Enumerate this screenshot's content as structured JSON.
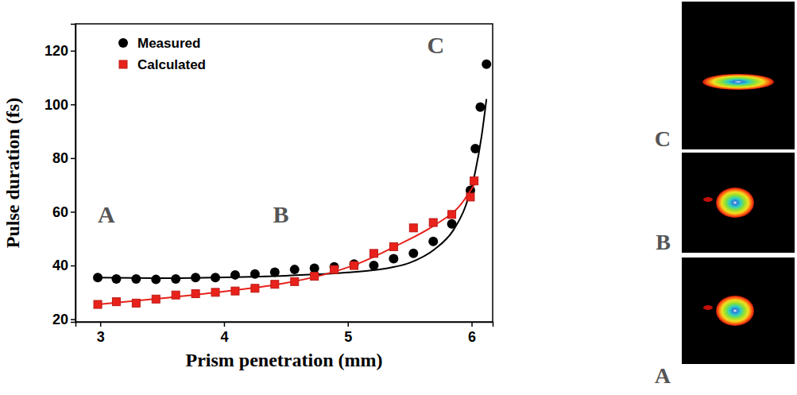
{
  "chart_data": {
    "type": "scatter",
    "x_label": "Prism penetration (mm)",
    "y_label": "Pulse duration (fs)",
    "xlim": [
      2.8,
      6.17
    ],
    "ylim": [
      19,
      130
    ],
    "xticks": [
      3,
      4,
      5,
      6
    ],
    "yticks": [
      20,
      40,
      60,
      80,
      100,
      120
    ],
    "legend": "top-left",
    "grid": false,
    "series": [
      {
        "name": "Measured",
        "color": "#000000",
        "marker": "circle",
        "x": [
          2.98,
          3.13,
          3.29,
          3.45,
          3.61,
          3.77,
          3.93,
          4.09,
          4.25,
          4.41,
          4.57,
          4.73,
          4.89,
          5.05,
          5.21,
          5.37,
          5.53,
          5.69,
          5.84,
          5.99,
          6.03,
          6.07,
          6.12
        ],
        "values": [
          35.5,
          35,
          35,
          34.8,
          35,
          35.5,
          35.5,
          36.5,
          36.8,
          37.5,
          38.5,
          39,
          39.5,
          40.5,
          40,
          42.5,
          44.5,
          49,
          55.5,
          68,
          83.5,
          99,
          115
        ],
        "fit": {
          "x": [
            2.98,
            3.5,
            4.0,
            4.5,
            5.0,
            5.3,
            5.5,
            5.7,
            5.85,
            5.95,
            6.03,
            6.08,
            6.12
          ],
          "values": [
            35.5,
            35.3,
            35.6,
            36.2,
            37.4,
            38.8,
            41,
            46,
            53,
            62,
            75,
            88,
            102
          ]
        }
      },
      {
        "name": "Calculated",
        "color": "#e8221b",
        "marker": "square",
        "x": [
          2.98,
          3.13,
          3.29,
          3.45,
          3.61,
          3.77,
          3.93,
          4.09,
          4.25,
          4.41,
          4.57,
          4.73,
          4.89,
          5.05,
          5.21,
          5.37,
          5.53,
          5.69,
          5.84,
          5.99,
          6.02
        ],
        "values": [
          25.5,
          26.5,
          26,
          27.5,
          29,
          29.5,
          30,
          30.5,
          31.5,
          33,
          34,
          36,
          38.5,
          40,
          44.5,
          47,
          54,
          56,
          59,
          65.5,
          71.5
        ],
        "fit": {
          "x": [
            2.98,
            3.5,
            4.0,
            4.5,
            4.8,
            5.1,
            5.4,
            5.7,
            5.9,
            6.02
          ],
          "values": [
            25.5,
            27.8,
            30.3,
            33.5,
            36.5,
            41,
            47.5,
            55,
            62,
            70
          ]
        }
      }
    ],
    "annotations": [
      {
        "text": "A",
        "x": 3.05,
        "y": 56
      },
      {
        "text": "B",
        "x": 4.46,
        "y": 56
      },
      {
        "text": "C",
        "x": 5.71,
        "y": 119
      }
    ],
    "insets": [
      "C",
      "B",
      "A"
    ]
  }
}
